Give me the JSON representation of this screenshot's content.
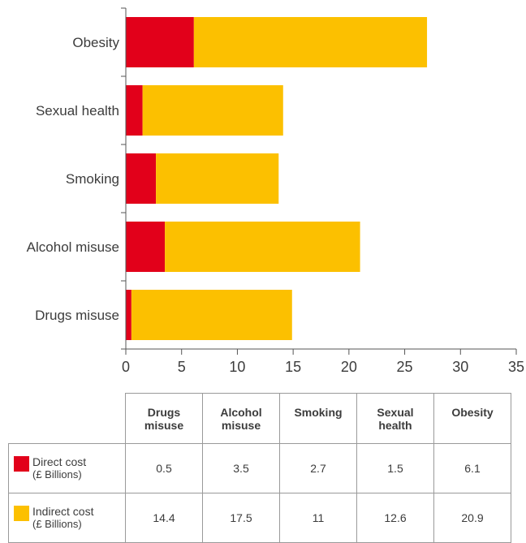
{
  "chart_data": {
    "type": "bar",
    "orientation": "horizontal",
    "stacked": true,
    "categories": [
      "Drugs misuse",
      "Alcohol misuse",
      "Smoking",
      "Sexual health",
      "Obesity"
    ],
    "series": [
      {
        "name": "Direct cost",
        "color": "#e2001a",
        "values": [
          0.5,
          3.5,
          2.7,
          1.5,
          6.1
        ]
      },
      {
        "name": "Indirect cost",
        "color": "#fcc000",
        "values": [
          14.4,
          17.5,
          11,
          12.6,
          20.9
        ]
      }
    ],
    "xlim": [
      0,
      35
    ],
    "xticks": [
      "0",
      "5",
      "10",
      "15",
      "20",
      "25",
      "30",
      "35"
    ],
    "grid": false,
    "legend": "table-below"
  },
  "table": {
    "headers": [
      [
        "Drugs",
        "misuse"
      ],
      [
        "Alcohol",
        "misuse"
      ],
      [
        "Smoking",
        ""
      ],
      [
        "Sexual",
        "health"
      ],
      [
        "Obesity",
        ""
      ]
    ],
    "rows": [
      {
        "label": "Direct cost",
        "unit": "(£ Billions)",
        "color": "#e2001a",
        "values": [
          "0.5",
          "3.5",
          "2.7",
          "1.5",
          "6.1"
        ]
      },
      {
        "label": "Indirect cost",
        "unit": "(£ Billions)",
        "color": "#fcc000",
        "values": [
          "14.4",
          "17.5",
          "11",
          "12.6",
          "20.9"
        ]
      }
    ]
  }
}
